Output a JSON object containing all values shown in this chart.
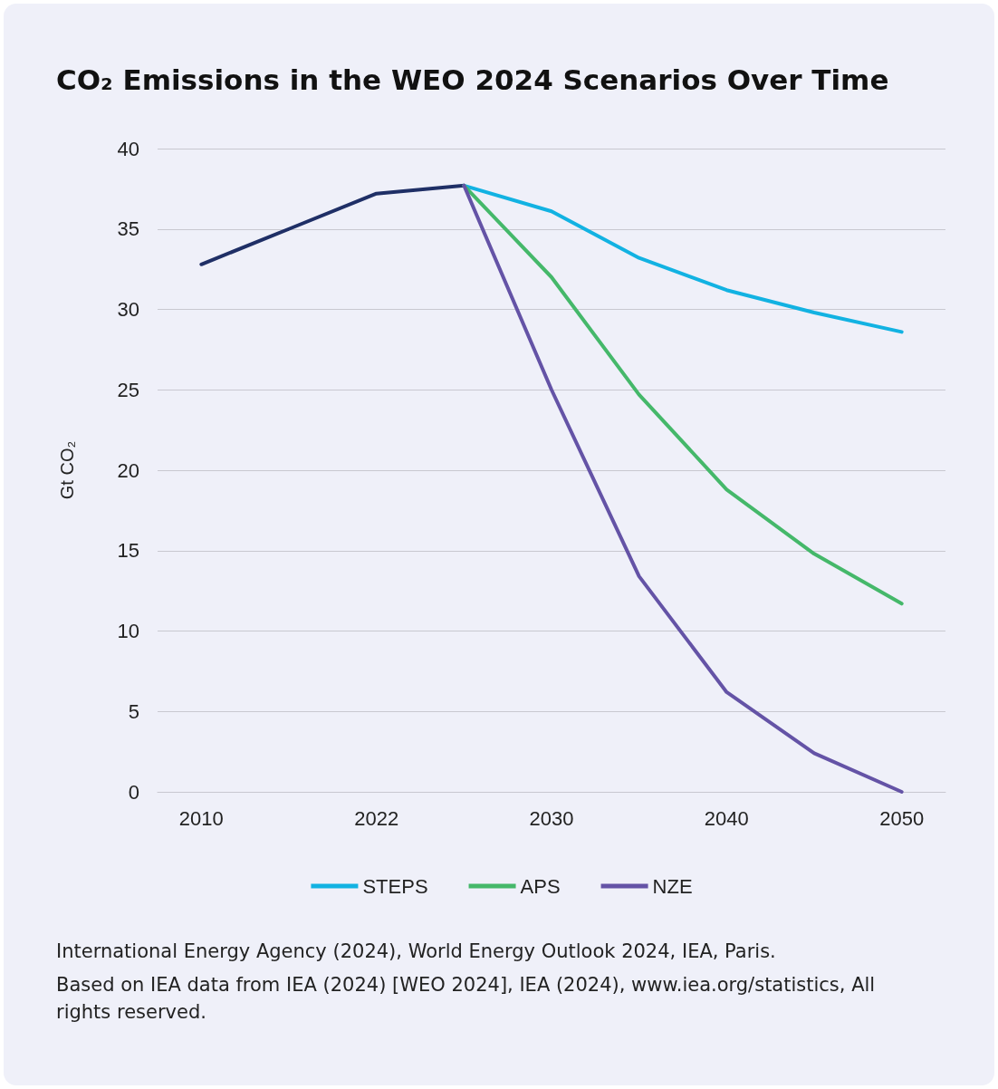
{
  "chart_data": {
    "type": "line",
    "title": "CO₂ Emissions in the WEO 2024 Scenarios Over Time",
    "ylabel": "Gt CO₂",
    "categories": [
      "2010",
      null,
      "2022",
      null,
      "2030",
      null,
      "2040",
      null,
      "2050"
    ],
    "series": [
      {
        "color": "#1f2f66",
        "values": [
          32.8,
          35.0,
          37.2,
          37.7,
          null,
          null,
          null,
          null,
          null
        ]
      },
      {
        "name": "STEPS",
        "color": "#12b2e2",
        "values": [
          null,
          null,
          null,
          37.7,
          36.1,
          33.2,
          31.2,
          29.8,
          28.6
        ]
      },
      {
        "name": "APS",
        "color": "#45b86a",
        "values": [
          null,
          null,
          null,
          37.7,
          32.0,
          24.7,
          18.8,
          14.8,
          11.7
        ]
      },
      {
        "name": "NZE",
        "color": "#6453a6",
        "values": [
          null,
          null,
          null,
          37.7,
          25.0,
          13.4,
          6.2,
          2.4,
          0
        ]
      }
    ],
    "ylim": [
      0,
      40
    ],
    "yticks": [
      0,
      5,
      10,
      15,
      20,
      25,
      30,
      35,
      40
    ],
    "grid": "y",
    "legend": "bottom",
    "marker": "none",
    "line_style": "solid",
    "annotations": [
      "International Energy Agency (2024), World Energy Outlook 2024, IEA, Paris.",
      "Based on IEA data from IEA (2024) [WEO 2024], IEA (2024), www.iea.org/statistics, All rights reserved."
    ]
  }
}
